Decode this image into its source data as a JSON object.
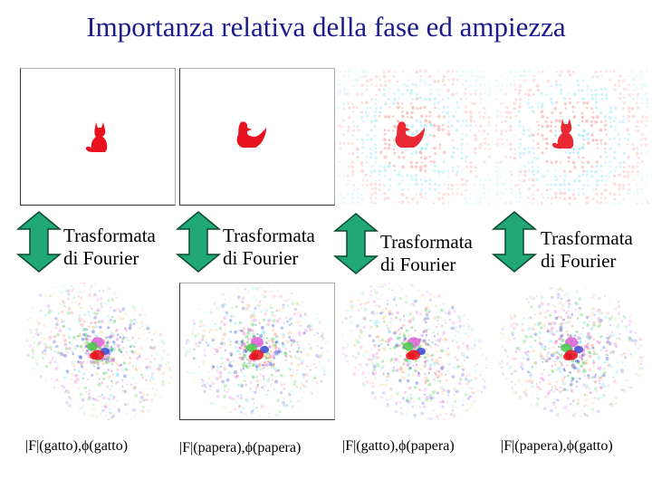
{
  "title": "Importanza relativa della fase ed ampiezza",
  "fourier_label": {
    "line1": "Trasformata",
    "line2": "di Fourier"
  },
  "captions": [
    "|F|(gatto),ϕ(gatto)",
    "|F|(papera),ϕ(papera)",
    "|F|(gatto),ϕ(papera)",
    "|F|(papera),ϕ(gatto)"
  ],
  "colors": {
    "title": "#1a1a8c",
    "shape": "#e8121e",
    "arrow_fill": "#22a776",
    "arrow_stroke": "#0b4a33",
    "ghost_cyan": "#7fe0ee",
    "ghost_red": "#f08a8a",
    "spectrum_green": "#46c84a",
    "spectrum_blue": "#3a4ad8",
    "spectrum_magenta": "#e060d8"
  },
  "images": [
    {
      "name": "cat-image",
      "content": "cat-silhouette"
    },
    {
      "name": "duck-image",
      "content": "duck-silhouette"
    },
    {
      "name": "reconstruction-duck-phase",
      "content": "duck-silhouette"
    },
    {
      "name": "reconstruction-cat-phase",
      "content": "cat-silhouette"
    }
  ],
  "spectra": [
    {
      "name": "spectrum-cat"
    },
    {
      "name": "spectrum-duck"
    },
    {
      "name": "spectrum-cat-mag-duck-phase"
    },
    {
      "name": "spectrum-duck-mag-cat-phase"
    }
  ]
}
